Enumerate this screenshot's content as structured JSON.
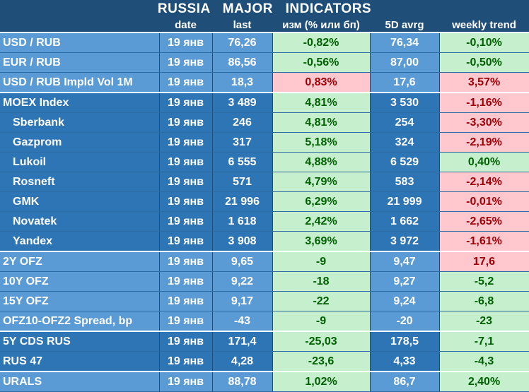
{
  "title": "RUSSIA   MAJOR   INDICATORS",
  "headers": [
    "",
    "date",
    "last",
    "изм (% или бп)",
    "5D avrg",
    "weekly trend"
  ],
  "colors": {
    "header_bg": "#1f4e79",
    "row_light": "#5b9bd5",
    "row_dark": "#2e75b6",
    "pos_bg": "#c6efce",
    "pos_text": "#006100",
    "neg_bg": "#ffc7ce",
    "neg_text": "#9c0006"
  },
  "rows": [
    {
      "name": "USD / RUB",
      "date": "19 янв",
      "last": "76,26",
      "chg": "-0,82%",
      "chg_tone": "pos",
      "avg": "76,34",
      "trend": "-0,10%",
      "trend_tone": "pos",
      "shade": "light",
      "indent": false,
      "sep": false
    },
    {
      "name": "EUR / RUB",
      "date": "19 янв",
      "last": "86,56",
      "chg": "-0,56%",
      "chg_tone": "pos",
      "avg": "87,00",
      "trend": "-0,50%",
      "trend_tone": "pos",
      "shade": "light",
      "indent": false,
      "sep": false
    },
    {
      "name": "USD / RUB Impld Vol 1M",
      "date": "19 янв",
      "last": "18,3",
      "chg": "0,83%",
      "chg_tone": "neg",
      "avg": "17,6",
      "trend": "3,57%",
      "trend_tone": "neg",
      "shade": "light",
      "indent": false,
      "sep": false
    },
    {
      "name": "MOEX Index",
      "date": "19 янв",
      "last": "3 489",
      "chg": "4,81%",
      "chg_tone": "pos",
      "avg": "3 530",
      "trend": "-1,16%",
      "trend_tone": "neg",
      "shade": "dark",
      "indent": false,
      "sep": true
    },
    {
      "name": "Sberbank",
      "date": "19 янв",
      "last": "246",
      "chg": "4,81%",
      "chg_tone": "pos",
      "avg": "254",
      "trend": "-3,30%",
      "trend_tone": "neg",
      "shade": "dark",
      "indent": true,
      "sep": false
    },
    {
      "name": "Gazprom",
      "date": "19 янв",
      "last": "317",
      "chg": "5,18%",
      "chg_tone": "pos",
      "avg": "324",
      "trend": "-2,19%",
      "trend_tone": "neg",
      "shade": "dark",
      "indent": true,
      "sep": false
    },
    {
      "name": "Lukoil",
      "date": "19 янв",
      "last": "6 555",
      "chg": "4,88%",
      "chg_tone": "pos",
      "avg": "6 529",
      "trend": "0,40%",
      "trend_tone": "pos",
      "shade": "dark",
      "indent": true,
      "sep": false
    },
    {
      "name": "Rosneft",
      "date": "19 янв",
      "last": "571",
      "chg": "4,79%",
      "chg_tone": "pos",
      "avg": "583",
      "trend": "-2,14%",
      "trend_tone": "neg",
      "shade": "dark",
      "indent": true,
      "sep": false
    },
    {
      "name": "GMK",
      "date": "19 янв",
      "last": "21 996",
      "chg": "6,29%",
      "chg_tone": "pos",
      "avg": "21 999",
      "trend": "-0,01%",
      "trend_tone": "neg",
      "shade": "dark",
      "indent": true,
      "sep": false
    },
    {
      "name": "Novatek",
      "date": "19 янв",
      "last": "1 618",
      "chg": "2,42%",
      "chg_tone": "pos",
      "avg": "1 662",
      "trend": "-2,65%",
      "trend_tone": "neg",
      "shade": "dark",
      "indent": true,
      "sep": false
    },
    {
      "name": "Yandex",
      "date": "19 янв",
      "last": "3 908",
      "chg": "3,69%",
      "chg_tone": "pos",
      "avg": "3 972",
      "trend": "-1,61%",
      "trend_tone": "neg",
      "shade": "dark",
      "indent": true,
      "sep": false
    },
    {
      "name": "2Y OFZ",
      "date": "19 янв",
      "last": "9,65",
      "chg": "-9",
      "chg_tone": "pos",
      "avg": "9,47",
      "trend": "17,6",
      "trend_tone": "neg",
      "shade": "light",
      "indent": false,
      "sep": true
    },
    {
      "name": "10Y OFZ",
      "date": "19 янв",
      "last": "9,22",
      "chg": "-18",
      "chg_tone": "pos",
      "avg": "9,27",
      "trend": "-5,2",
      "trend_tone": "pos",
      "shade": "light",
      "indent": false,
      "sep": false
    },
    {
      "name": "15Y OFZ",
      "date": "19 янв",
      "last": "9,17",
      "chg": "-22",
      "chg_tone": "pos",
      "avg": "9,24",
      "trend": "-6,8",
      "trend_tone": "pos",
      "shade": "light",
      "indent": false,
      "sep": false
    },
    {
      "name": "OFZ10-OFZ2 Spread, bp",
      "date": "19 янв",
      "last": "-43",
      "chg": "-9",
      "chg_tone": "pos",
      "avg": "-20",
      "trend": "-23",
      "trend_tone": "pos",
      "shade": "light",
      "indent": false,
      "sep": false
    },
    {
      "name": "5Y CDS RUS",
      "date": "19 янв",
      "last": "171,4",
      "chg": "-25,03",
      "chg_tone": "pos",
      "avg": "178,5",
      "trend": "-7,1",
      "trend_tone": "pos",
      "shade": "dark",
      "indent": false,
      "sep": true
    },
    {
      "name": "RUS 47",
      "date": "19 янв",
      "last": "4,28",
      "chg": "-23,6",
      "chg_tone": "pos",
      "avg": "4,33",
      "trend": "-4,3",
      "trend_tone": "pos",
      "shade": "dark",
      "indent": false,
      "sep": false
    },
    {
      "name": "URALS",
      "date": "19 янв",
      "last": "88,78",
      "chg": "1,02%",
      "chg_tone": "pos",
      "avg": "86,7",
      "trend": "2,40%",
      "trend_tone": "pos",
      "shade": "light",
      "indent": false,
      "sep": true
    }
  ]
}
